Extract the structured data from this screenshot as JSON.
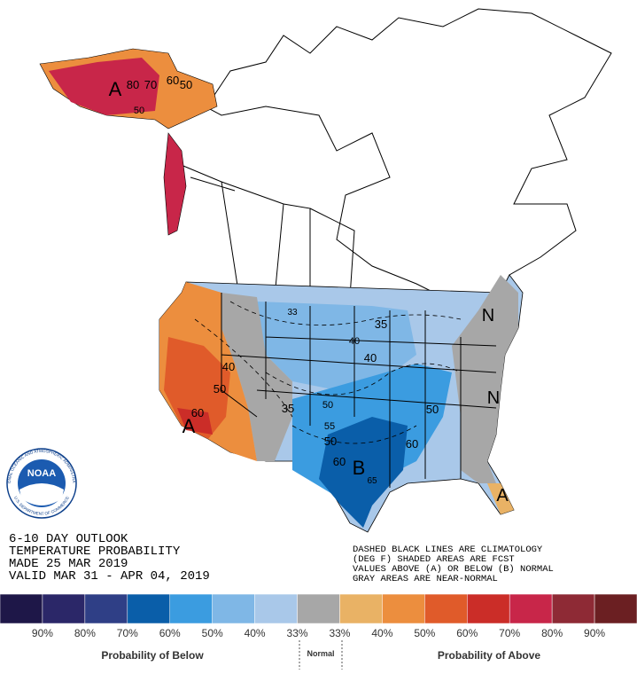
{
  "title_lines": [
    "6-10 DAY OUTLOOK",
    "TEMPERATURE PROBABILITY",
    "MADE  25 MAR 2019",
    "VALID  MAR 31 - APR 04, 2019"
  ],
  "note_lines": [
    "DASHED BLACK LINES ARE CLIMATOLOGY",
    "(DEG F) SHADED AREAS ARE FCST",
    "VALUES ABOVE (A) OR BELOW (B) NORMAL",
    "GRAY AREAS ARE NEAR-NORMAL"
  ],
  "logo": {
    "text": "NOAA",
    "ring_top": "NATIONAL OCEANIC AND ATMOSPHERIC ADMINISTRATION",
    "ring_bottom": "U.S. DEPARTMENT OF COMMERCE"
  },
  "map_labels": [
    "A",
    "80",
    "70",
    "60",
    "50",
    "50",
    "A",
    "60",
    "50",
    "40",
    "35",
    "33",
    "40",
    "40",
    "50",
    "55",
    "50",
    "60",
    "B",
    "65",
    "60",
    "50",
    "N",
    "N",
    "A",
    "35"
  ],
  "legend": {
    "colors": [
      "#1e1748",
      "#2b2768",
      "#2f3f86",
      "#0a5ea9",
      "#3b9ce0",
      "#7fb7e6",
      "#a9c8e9",
      "#a7a7a7",
      "#e9b265",
      "#ec8e3e",
      "#e05b2a",
      "#cb2d28",
      "#c82649",
      "#8e2a35",
      "#6b1f22"
    ],
    "labels": [
      "90%",
      "80%",
      "70%",
      "60%",
      "50%",
      "40%",
      "33%",
      "33%",
      "40%",
      "50%",
      "60%",
      "70%",
      "80%",
      "90%"
    ],
    "below_title": "Probability of Below",
    "normal_title": "Normal",
    "above_title": "Probability of Above"
  }
}
